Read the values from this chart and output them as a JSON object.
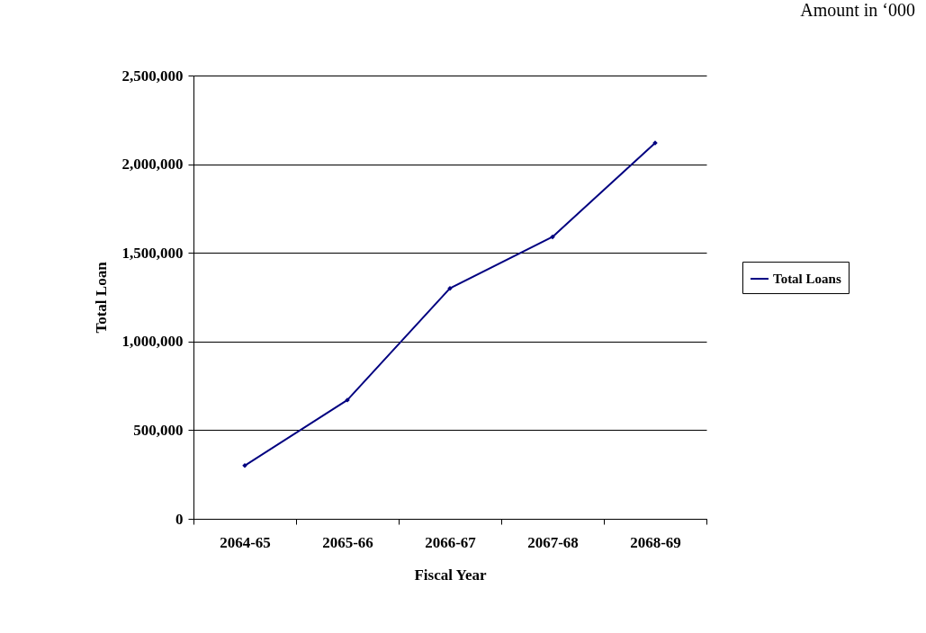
{
  "chart_data": {
    "type": "line",
    "xlabel": "Fiscal Year",
    "ylabel": "Total Loan",
    "annotations": [
      "Amount in ‘000"
    ],
    "categories": [
      "2064-65",
      "2065-66",
      "2066-67",
      "2067-68",
      "2068-69"
    ],
    "series": [
      {
        "name": "Total Loans",
        "color": "#000080",
        "values": [
          300000,
          670000,
          1300000,
          1590000,
          2120000
        ]
      }
    ],
    "ylim": [
      0,
      2500000
    ],
    "yticks": [
      0,
      {
        "value": 500000,
        "label": "500,000"
      },
      {
        "value": 1000000,
        "label": "1,000,000"
      },
      {
        "value": 1500000,
        "label": "1,500,000"
      },
      {
        "value": 2000000,
        "label": "2,000,000"
      },
      {
        "value": 2500000,
        "label": "2,500,000"
      }
    ],
    "grid": "y",
    "legend": "right",
    "marker": "diamond",
    "line_style": "solid"
  }
}
